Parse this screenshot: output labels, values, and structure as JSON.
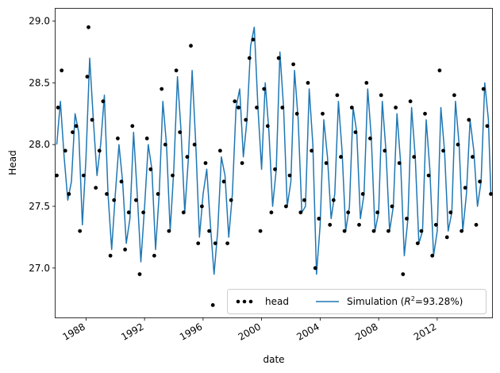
{
  "chart_data": {
    "type": "line",
    "xlabel": "date",
    "ylabel": "Head",
    "xlim": [
      "1985-12-01",
      "2015-10-01"
    ],
    "ylim": [
      26.6,
      29.1
    ],
    "x_ticks": [
      "1988",
      "1992",
      "1996",
      "2000",
      "2004",
      "2008",
      "2012"
    ],
    "y_ticks": [
      "27.0",
      "27.5",
      "28.0",
      "28.5",
      "29.0"
    ],
    "grid": false,
    "legend": {
      "placement": "bottom-right",
      "entries": [
        {
          "label": "head",
          "marker": "dots"
        },
        {
          "label_prefix": "Simulation (",
          "label_r": "R",
          "label_sup": "2",
          "label_suffix": "=93.28%)",
          "marker": "line"
        }
      ]
    },
    "colors": {
      "head": "#000000",
      "simulation": "#1f77b4"
    },
    "series": [
      {
        "name": "Simulation",
        "kind": "line",
        "x": [
          "1986-01",
          "1986-04",
          "1986-07",
          "1986-10",
          "1987-01",
          "1987-04",
          "1987-07",
          "1987-10",
          "1988-01",
          "1988-04",
          "1988-07",
          "1988-10",
          "1989-01",
          "1989-04",
          "1989-07",
          "1989-10",
          "1990-01",
          "1990-04",
          "1990-07",
          "1990-10",
          "1991-01",
          "1991-04",
          "1991-07",
          "1991-10",
          "1992-01",
          "1992-04",
          "1992-07",
          "1992-10",
          "1993-01",
          "1993-04",
          "1993-07",
          "1993-10",
          "1994-01",
          "1994-04",
          "1994-07",
          "1994-10",
          "1995-01",
          "1995-04",
          "1995-07",
          "1995-10",
          "1996-01",
          "1996-04",
          "1996-07",
          "1996-10",
          "1997-01",
          "1997-04",
          "1997-07",
          "1997-10",
          "1998-01",
          "1998-04",
          "1998-07",
          "1998-10",
          "1999-01",
          "1999-04",
          "1999-07",
          "1999-10",
          "2000-01",
          "2000-04",
          "2000-07",
          "2000-10",
          "2001-01",
          "2001-04",
          "2001-07",
          "2001-10",
          "2002-01",
          "2002-04",
          "2002-07",
          "2002-10",
          "2003-01",
          "2003-04",
          "2003-07",
          "2003-10",
          "2004-01",
          "2004-04",
          "2004-07",
          "2004-10",
          "2005-01",
          "2005-04",
          "2005-07",
          "2005-10",
          "2006-01",
          "2006-04",
          "2006-07",
          "2006-10",
          "2007-01",
          "2007-04",
          "2007-07",
          "2007-10",
          "2008-01",
          "2008-04",
          "2008-07",
          "2008-10",
          "2009-01",
          "2009-04",
          "2009-07",
          "2009-10",
          "2010-01",
          "2010-04",
          "2010-07",
          "2010-10",
          "2011-01",
          "2011-04",
          "2011-07",
          "2011-10",
          "2012-01",
          "2012-04",
          "2012-07",
          "2012-10",
          "2013-01",
          "2013-04",
          "2013-07",
          "2013-10",
          "2014-01",
          "2014-04",
          "2014-07",
          "2014-10",
          "2015-01",
          "2015-04",
          "2015-07",
          "2015-09"
        ],
        "y": [
          28.0,
          28.35,
          27.9,
          27.55,
          27.7,
          28.25,
          28.1,
          27.35,
          27.9,
          28.7,
          28.2,
          27.75,
          28.0,
          28.4,
          27.6,
          27.15,
          27.6,
          28.0,
          27.7,
          27.2,
          27.4,
          28.1,
          27.6,
          27.05,
          27.5,
          28.0,
          27.8,
          27.15,
          27.6,
          28.35,
          28.0,
          27.3,
          27.8,
          28.55,
          28.1,
          27.45,
          27.9,
          28.6,
          28.0,
          27.25,
          27.6,
          27.8,
          27.35,
          26.95,
          27.3,
          27.9,
          27.75,
          27.25,
          27.6,
          28.3,
          28.45,
          27.9,
          28.2,
          28.8,
          28.95,
          28.3,
          27.8,
          28.5,
          28.1,
          27.5,
          27.8,
          28.75,
          28.3,
          27.5,
          27.7,
          28.6,
          28.2,
          27.45,
          27.5,
          28.45,
          28.0,
          26.95,
          27.35,
          28.2,
          27.9,
          27.4,
          27.6,
          28.35,
          27.95,
          27.3,
          27.5,
          28.3,
          28.1,
          27.4,
          27.6,
          28.45,
          28.05,
          27.3,
          27.45,
          28.35,
          27.95,
          27.3,
          27.5,
          28.25,
          27.85,
          27.1,
          27.4,
          28.3,
          27.9,
          27.2,
          27.3,
          28.2,
          27.8,
          27.1,
          27.3,
          28.3,
          27.95,
          27.3,
          27.45,
          28.35,
          28.0,
          27.3,
          27.6,
          28.2,
          27.95,
          27.5,
          27.7,
          28.5,
          28.2,
          27.6
        ]
      },
      {
        "name": "head",
        "kind": "scatter",
        "x": [
          "1986-01",
          "1986-02",
          "1986-05",
          "1986-08",
          "1986-11",
          "1987-02",
          "1987-05",
          "1987-08",
          "1987-11",
          "1988-02",
          "1988-03",
          "1988-06",
          "1988-09",
          "1988-12",
          "1989-03",
          "1989-06",
          "1989-09",
          "1989-12",
          "1990-03",
          "1990-06",
          "1990-09",
          "1990-12",
          "1991-03",
          "1991-06",
          "1991-09",
          "1991-12",
          "1992-03",
          "1992-06",
          "1992-09",
          "1992-12",
          "1993-03",
          "1993-06",
          "1993-09",
          "1993-12",
          "1994-03",
          "1994-06",
          "1994-09",
          "1994-12",
          "1995-03",
          "1995-06",
          "1995-09",
          "1995-12",
          "1996-03",
          "1996-06",
          "1996-09",
          "1996-11",
          "1997-03",
          "1997-06",
          "1997-09",
          "1997-12",
          "1998-03",
          "1998-06",
          "1998-09",
          "1998-12",
          "1999-03",
          "1999-06",
          "1999-09",
          "1999-12",
          "2000-03",
          "2000-06",
          "2000-09",
          "2000-12",
          "2001-03",
          "2001-06",
          "2001-09",
          "2001-12",
          "2002-03",
          "2002-06",
          "2002-09",
          "2002-12",
          "2003-03",
          "2003-06",
          "2003-09",
          "2003-12",
          "2004-03",
          "2004-06",
          "2004-09",
          "2004-12",
          "2005-03",
          "2005-06",
          "2005-09",
          "2005-12",
          "2006-03",
          "2006-06",
          "2006-09",
          "2006-12",
          "2007-03",
          "2007-06",
          "2007-09",
          "2007-12",
          "2008-03",
          "2008-06",
          "2008-09",
          "2008-12",
          "2009-03",
          "2009-06",
          "2009-09",
          "2009-12",
          "2010-03",
          "2010-06",
          "2010-09",
          "2010-12",
          "2011-03",
          "2011-06",
          "2011-09",
          "2011-12",
          "2012-03",
          "2012-06",
          "2012-09",
          "2012-12",
          "2013-03",
          "2013-06",
          "2013-09",
          "2013-12",
          "2014-03",
          "2014-06",
          "2014-09",
          "2014-12",
          "2015-03",
          "2015-06",
          "2015-09"
        ],
        "y": [
          27.75,
          28.3,
          28.6,
          27.95,
          27.6,
          28.1,
          28.15,
          27.3,
          27.75,
          28.55,
          28.95,
          28.2,
          27.65,
          27.95,
          28.35,
          27.6,
          27.1,
          27.55,
          28.05,
          27.7,
          27.15,
          27.45,
          28.15,
          27.55,
          26.95,
          27.45,
          28.05,
          27.8,
          27.1,
          27.6,
          28.45,
          28.0,
          27.3,
          27.75,
          28.6,
          28.1,
          27.45,
          27.9,
          28.8,
          28.0,
          27.2,
          27.5,
          27.85,
          27.3,
          26.7,
          27.2,
          27.95,
          27.7,
          27.2,
          27.55,
          28.35,
          28.3,
          27.85,
          28.2,
          28.7,
          28.85,
          28.3,
          27.3,
          28.45,
          28.15,
          27.45,
          27.8,
          28.7,
          28.3,
          27.5,
          27.75,
          28.65,
          28.25,
          27.45,
          27.55,
          28.5,
          27.95,
          27.0,
          27.4,
          28.25,
          27.85,
          27.35,
          27.55,
          28.4,
          27.9,
          27.3,
          27.45,
          28.3,
          28.1,
          27.35,
          27.6,
          28.5,
          28.05,
          27.3,
          27.45,
          28.4,
          27.95,
          27.3,
          27.5,
          28.3,
          27.85,
          26.95,
          27.4,
          28.35,
          27.9,
          27.2,
          27.3,
          28.25,
          27.75,
          27.1,
          27.35,
          28.6,
          27.95,
          27.25,
          27.45,
          28.4,
          28.0,
          27.3,
          27.65,
          28.2,
          27.9,
          27.35,
          27.7,
          28.45,
          28.15,
          27.6
        ]
      }
    ]
  }
}
